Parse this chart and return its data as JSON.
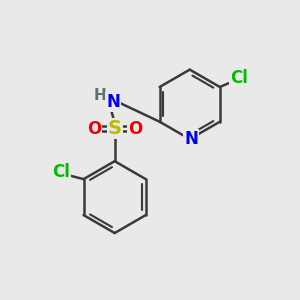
{
  "background_color": "#e9e9e9",
  "bond_color": "#3a3a3a",
  "bond_width": 1.8,
  "atom_colors": {
    "N": "#0000ee",
    "NH_H": "#607070",
    "NH_N": "#0000ee",
    "O": "#ee0000",
    "S": "#bbbb00",
    "Cl": "#00bb00"
  },
  "font_size": 12,
  "font_size_S": 14
}
